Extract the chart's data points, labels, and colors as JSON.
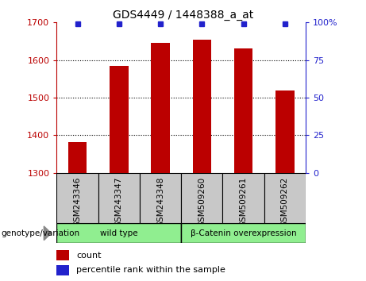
{
  "title": "GDS4449 / 1448388_a_at",
  "samples": [
    "GSM243346",
    "GSM243347",
    "GSM243348",
    "GSM509260",
    "GSM509261",
    "GSM509262"
  ],
  "bar_values": [
    1382,
    1585,
    1645,
    1655,
    1630,
    1520
  ],
  "percentile_values": [
    99,
    99,
    99,
    99,
    99,
    99
  ],
  "bar_color": "#bb0000",
  "percentile_color": "#2222cc",
  "ymin": 1300,
  "ymax": 1700,
  "y_ticks": [
    1300,
    1400,
    1500,
    1600,
    1700
  ],
  "y2_ticks": [
    0,
    25,
    50,
    75,
    100
  ],
  "y2_tick_labels": [
    "0",
    "25",
    "50",
    "75",
    "100%"
  ],
  "group1_label": "wild type",
  "group2_label": "β-Catenin overexpression",
  "group_color": "#90ee90",
  "bar_width": 0.45,
  "plot_bg_color": "#ffffff",
  "tick_area_bg": "#c8c8c8",
  "legend_count_color": "#bb0000",
  "legend_percentile_color": "#2222cc",
  "legend_count_label": "count",
  "legend_percentile_label": "percentile rank within the sample",
  "genotype_label": "genotype/variation",
  "title_fontsize": 10,
  "axis_fontsize": 8,
  "label_fontsize": 7.5,
  "legend_fontsize": 8
}
